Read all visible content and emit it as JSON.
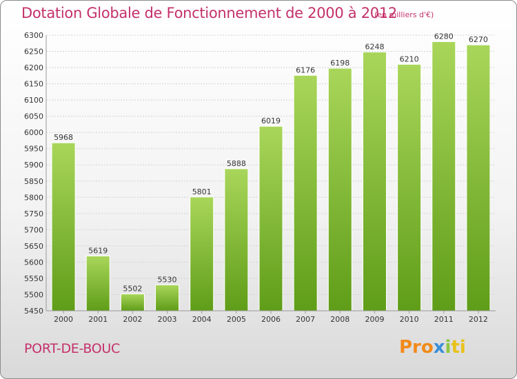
{
  "header": {
    "title": "Dotation Globale de Fonctionnement de 2000 à 2012",
    "unit": "(en milliers d'€)"
  },
  "footer": {
    "commune": "PORT-DE-BOUC",
    "logo": [
      "Pro",
      "x",
      "i",
      "ti"
    ]
  },
  "colors": {
    "title": "#c4306a",
    "bar_light": "#a9d65a",
    "bar_dark": "#5f9d18"
  },
  "chart_data": {
    "type": "bar",
    "title": "Dotation Globale de Fonctionnement de 2000 à 2012",
    "subtitle": "(en milliers d'€)",
    "categories": [
      "2000",
      "2001",
      "2002",
      "2003",
      "2004",
      "2005",
      "2006",
      "2007",
      "2008",
      "2009",
      "2010",
      "2011",
      "2012"
    ],
    "values": [
      5968,
      5619,
      5502,
      5530,
      5801,
      5888,
      6019,
      6176,
      6198,
      6248,
      6210,
      6280,
      6270
    ],
    "ylim": [
      5450,
      6300
    ],
    "yticks": [
      5450,
      5500,
      5550,
      5600,
      5650,
      5700,
      5750,
      5800,
      5850,
      5900,
      5950,
      6000,
      6050,
      6100,
      6150,
      6200,
      6250,
      6300
    ],
    "grid": true,
    "xlabel": "",
    "ylabel": ""
  }
}
